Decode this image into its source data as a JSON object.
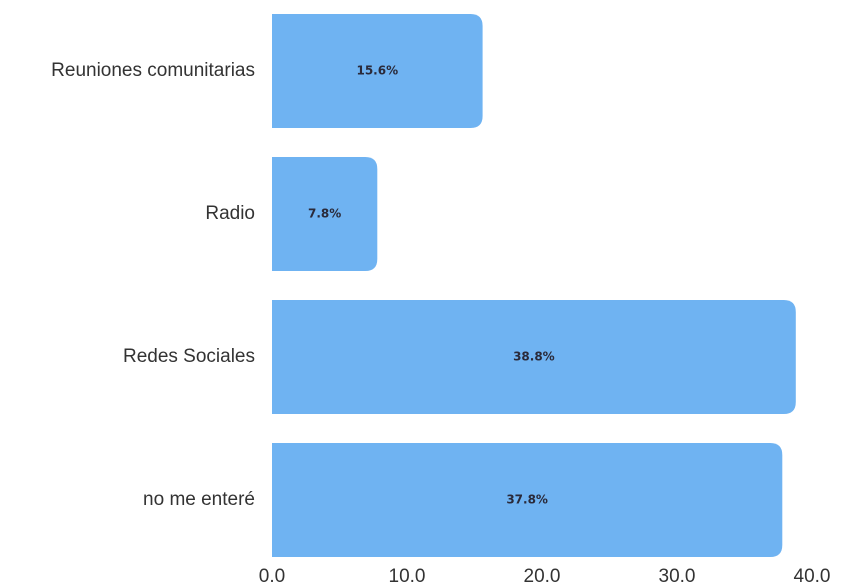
{
  "chart_data": {
    "type": "bar",
    "orientation": "horizontal",
    "categories": [
      "Reuniones comunitarias",
      "Radio",
      "Redes Sociales",
      "no me enteré"
    ],
    "values": [
      15.6,
      7.8,
      38.8,
      37.8
    ],
    "data_labels": [
      "15.6%",
      "7.8%",
      "38.8%",
      "37.8%"
    ],
    "xlim": [
      0,
      40
    ],
    "x_ticks": [
      0,
      10,
      20,
      30,
      40
    ],
    "x_tick_labels": [
      "0.0",
      "10.0",
      "20.0",
      "30.0",
      "40.0"
    ],
    "title": "",
    "xlabel": "",
    "ylabel": "",
    "grid": false,
    "bar_color": "#6fb3f2",
    "legend": "none"
  }
}
